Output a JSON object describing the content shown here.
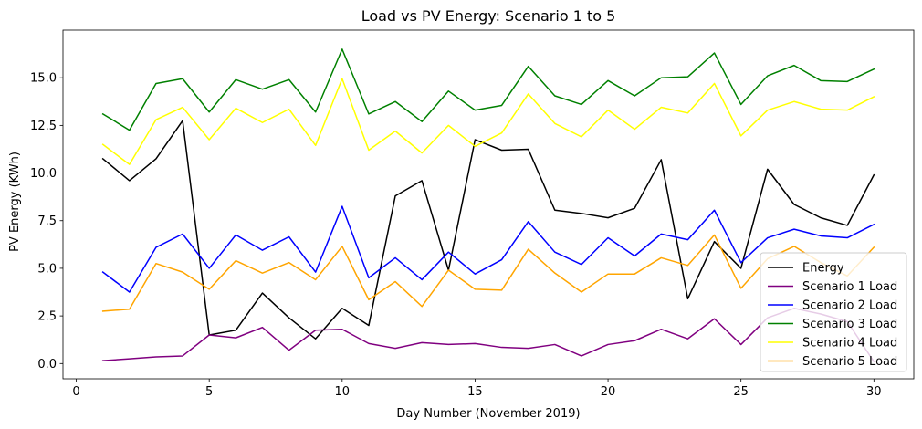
{
  "chart_data": {
    "type": "line",
    "title": "Load vs PV Energy: Scenario 1 to 5",
    "xlabel": "Day Number (November 2019)",
    "ylabel": "PV Energy (KWh)",
    "xlim": [
      -0.5,
      31.5
    ],
    "ylim": [
      -0.8,
      17.5
    ],
    "xticks": [
      0,
      5,
      10,
      15,
      20,
      25,
      30
    ],
    "yticks": [
      0.0,
      2.5,
      5.0,
      7.5,
      10.0,
      12.5,
      15.0
    ],
    "ytick_labels": [
      "0.0",
      "2.5",
      "5.0",
      "7.5",
      "10.0",
      "12.5",
      "15.0"
    ],
    "grid": false,
    "legend_position": "lower right",
    "x": [
      1,
      2,
      3,
      4,
      5,
      6,
      7,
      8,
      9,
      10,
      11,
      12,
      13,
      14,
      15,
      16,
      17,
      18,
      19,
      20,
      21,
      22,
      23,
      24,
      25,
      26,
      27,
      28,
      29,
      30
    ],
    "series": [
      {
        "name": "Energy",
        "color": "#000000",
        "values": [
          10.75,
          9.6,
          10.75,
          12.75,
          1.5,
          1.75,
          3.7,
          2.4,
          1.3,
          2.9,
          2.0,
          8.8,
          9.6,
          4.9,
          11.75,
          11.2,
          11.25,
          8.05,
          7.88,
          7.65,
          8.15,
          10.7,
          3.4,
          6.4,
          5.0,
          10.2,
          8.35,
          7.65,
          7.25,
          9.9
        ]
      },
      {
        "name": "Scenario 1 Load",
        "color": "#800080",
        "values": [
          0.15,
          0.25,
          0.35,
          0.4,
          1.5,
          1.35,
          1.9,
          0.7,
          1.75,
          1.8,
          1.05,
          0.8,
          1.1,
          1.0,
          1.05,
          0.85,
          0.8,
          1.0,
          0.4,
          1.0,
          1.2,
          1.8,
          1.3,
          2.35,
          1.0,
          2.4,
          2.9,
          2.6,
          2.2,
          0.1
        ]
      },
      {
        "name": "Scenario 2 Load",
        "color": "#0000ff",
        "values": [
          4.8,
          3.75,
          6.1,
          6.8,
          5.0,
          6.75,
          5.95,
          6.65,
          4.8,
          8.25,
          4.5,
          5.55,
          4.4,
          5.85,
          4.7,
          5.45,
          7.45,
          5.85,
          5.2,
          6.6,
          5.65,
          6.8,
          6.5,
          8.05,
          5.3,
          6.6,
          7.05,
          6.7,
          6.6,
          7.3
        ]
      },
      {
        "name": "Scenario 3 Load",
        "color": "#008000",
        "values": [
          13.1,
          12.25,
          14.7,
          14.95,
          13.2,
          14.9,
          14.4,
          14.9,
          13.2,
          16.5,
          13.1,
          13.75,
          12.7,
          14.3,
          13.3,
          13.55,
          15.6,
          14.05,
          13.6,
          14.85,
          14.05,
          15.0,
          15.05,
          16.3,
          13.6,
          15.1,
          15.65,
          14.85,
          14.8,
          15.45
        ]
      },
      {
        "name": "Scenario 4 Load",
        "color": "#ffff00",
        "values": [
          11.5,
          10.45,
          12.8,
          13.45,
          11.75,
          13.4,
          12.65,
          13.35,
          11.45,
          14.95,
          11.2,
          12.2,
          11.05,
          12.5,
          11.4,
          12.1,
          14.15,
          12.6,
          11.9,
          13.3,
          12.3,
          13.45,
          13.15,
          14.7,
          11.95,
          13.3,
          13.75,
          13.35,
          13.3,
          14.0
        ]
      },
      {
        "name": "Scenario 5 Load",
        "color": "#ffa500",
        "values": [
          2.75,
          2.85,
          5.25,
          4.8,
          3.9,
          5.4,
          4.75,
          5.3,
          4.4,
          6.15,
          3.35,
          4.3,
          3.0,
          4.9,
          3.9,
          3.85,
          6.0,
          4.75,
          3.75,
          4.7,
          4.7,
          5.55,
          5.15,
          6.75,
          3.95,
          5.5,
          6.15,
          5.3,
          4.6,
          6.1
        ]
      }
    ]
  }
}
